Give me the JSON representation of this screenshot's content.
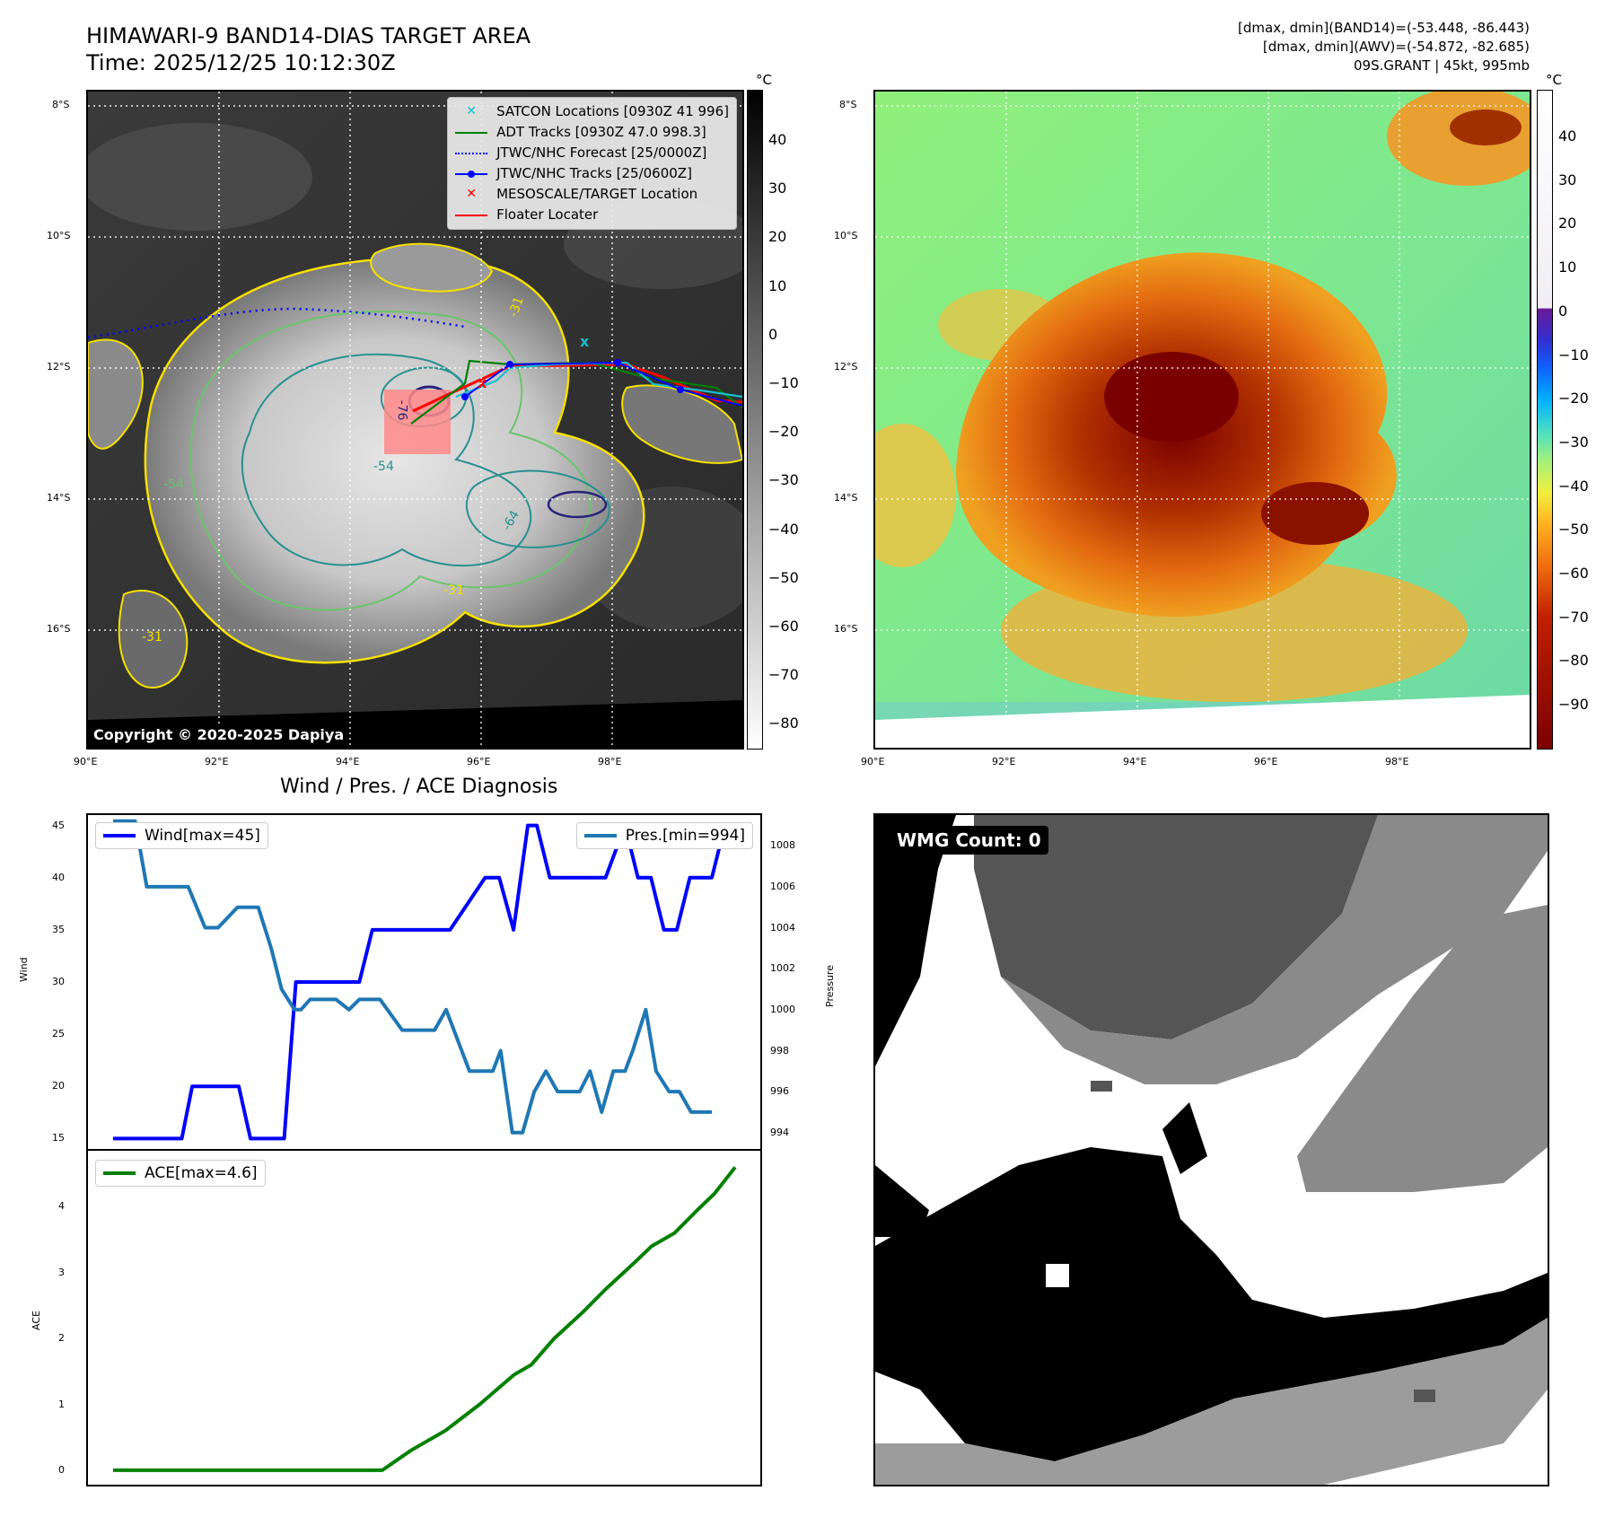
{
  "header": {
    "title_line1": "HIMAWARI-9 BAND14-DIAS TARGET AREA",
    "title_line2": "Time: 2025/12/25 10:12:30Z",
    "info_line1": "[dmax, dmin](BAND14)=(-53.448, -86.443)",
    "info_line2": "[dmax, dmin](AWV)=(-54.872, -82.685)",
    "info_line3": "09S.GRANT | 45kt, 995mb"
  },
  "map": {
    "lat_labels": [
      "8°S",
      "10°S",
      "12°S",
      "14°S",
      "16°S"
    ],
    "lon_labels": [
      "90°E",
      "92°E",
      "94°E",
      "96°E",
      "98°E"
    ],
    "copyright": "Copyright © 2020-2025 Dapiya",
    "contour_labels": [
      "-76",
      "-54",
      "-64",
      "-54",
      "-31",
      "-31",
      "-31"
    ],
    "legend": [
      {
        "label": "SATCON Locations [0930Z 41 996]",
        "color": "#17becf",
        "style": "x"
      },
      {
        "label": "ADT Tracks [0930Z 47.0 998.3]",
        "color": "#008000",
        "style": "solid"
      },
      {
        "label": "JTWC/NHC Forecast [25/0000Z]",
        "color": "#0000ff",
        "style": "dotted"
      },
      {
        "label": "JTWC/NHC Tracks [25/0600Z]",
        "color": "#0000ff",
        "style": "dot-line"
      },
      {
        "label": "MESOSCALE/TARGET Location",
        "color": "#ff0000",
        "style": "x"
      },
      {
        "label": "Floater Locater",
        "color": "#ff0000",
        "style": "solid"
      }
    ]
  },
  "colorbar_left": {
    "unit": "°C",
    "ticks": [
      "40",
      "30",
      "20",
      "10",
      "0",
      "−10",
      "−20",
      "−30",
      "−40",
      "−50",
      "−60",
      "−70",
      "−80"
    ]
  },
  "colorbar_right": {
    "unit": "°C",
    "ticks": [
      "40",
      "30",
      "20",
      "10",
      "0",
      "−10",
      "−20",
      "−30",
      "−40",
      "−50",
      "−60",
      "−70",
      "−80",
      "−90"
    ]
  },
  "wmg": {
    "label": "WMG Count: 0"
  },
  "chart_data": [
    {
      "type": "line",
      "title": "Wind / Pres. / ACE Diagnosis",
      "ylabel": "Wind",
      "ylabel_right": "Pressure",
      "ylim": [
        14,
        46
      ],
      "ylim_right": [
        993.2,
        1009.5
      ],
      "yticks": [
        "15",
        "20",
        "25",
        "30",
        "35",
        "40",
        "45"
      ],
      "yticks_right": [
        "994",
        "996",
        "998",
        "1000",
        "1002",
        "1004",
        "1006",
        "1008"
      ],
      "series": [
        {
          "name": "Wind[max=45]",
          "color": "#0000ff",
          "x": [
            0,
            5.3,
            6.1,
            9.7,
            10.6,
            13.2,
            14.1,
            14.8,
            19,
            20,
            22.5,
            24,
            26,
            28.7,
            29.8,
            30.9,
            32,
            32.7,
            33.7,
            35,
            36.5,
            38,
            39.5,
            40.5,
            41.5,
            42.5,
            43.5,
            44.5,
            45.5,
            46.2,
            47.2,
            48
          ],
          "values": [
            15,
            15,
            20,
            20,
            15,
            15,
            30,
            30,
            30,
            35,
            35,
            35,
            35,
            40,
            40,
            35,
            45,
            45,
            40,
            40,
            40,
            40,
            45,
            40,
            40,
            35,
            35,
            40,
            40,
            40,
            45,
            45
          ]
        },
        {
          "name": "Pres.[min=994]",
          "color": "#1f77b4",
          "axis": "right",
          "x": [
            0,
            1.7,
            2.6,
            4.9,
            5.8,
            7.1,
            8.1,
            9.6,
            10.6,
            11.2,
            12.2,
            13,
            14,
            14.5,
            15.2,
            16.2,
            17.2,
            18.2,
            19,
            19.8,
            20.6,
            22.3,
            24.1,
            24.8,
            25.7,
            27.5,
            28.4,
            29.3,
            29.9,
            30.8,
            31.6,
            32.5,
            33.4,
            34.3,
            35.2,
            36,
            36.8,
            37.7,
            38.6,
            39.5,
            40.1,
            41.1,
            41.9,
            42.9,
            43.7,
            44.6,
            45.6,
            46.2
          ],
          "values": [
            1009.2,
            1009.2,
            1006,
            1006,
            1006,
            1004,
            1004,
            1005,
            1005,
            1005,
            1003,
            1001,
            1000,
            1000,
            1000.5,
            1000.5,
            1000.5,
            1000,
            1000.5,
            1000.5,
            1000.5,
            999,
            999,
            999,
            1000,
            997,
            997,
            997,
            998,
            994,
            994,
            996,
            997,
            996,
            996,
            996,
            997,
            995,
            997,
            997,
            998,
            1000,
            997,
            996,
            996,
            995,
            995,
            995
          ]
        }
      ]
    },
    {
      "type": "line",
      "ylabel": "ACE",
      "ylim": [
        -0.22,
        4.85
      ],
      "yticks": [
        "0",
        "1",
        "2",
        "3",
        "4"
      ],
      "series": [
        {
          "name": "ACE[max=4.6]",
          "color": "#008000",
          "x": [
            0,
            23.5,
            26,
            29,
            32,
            35,
            36.5,
            38.5,
            41,
            43,
            45.5,
            47,
            49,
            51,
            52.5,
            54.3
          ],
          "values": [
            0,
            0,
            0.3,
            0.6,
            1,
            1.45,
            1.6,
            2,
            2.4,
            2.75,
            3.15,
            3.4,
            3.6,
            3.95,
            4.2,
            4.6
          ]
        }
      ]
    }
  ]
}
